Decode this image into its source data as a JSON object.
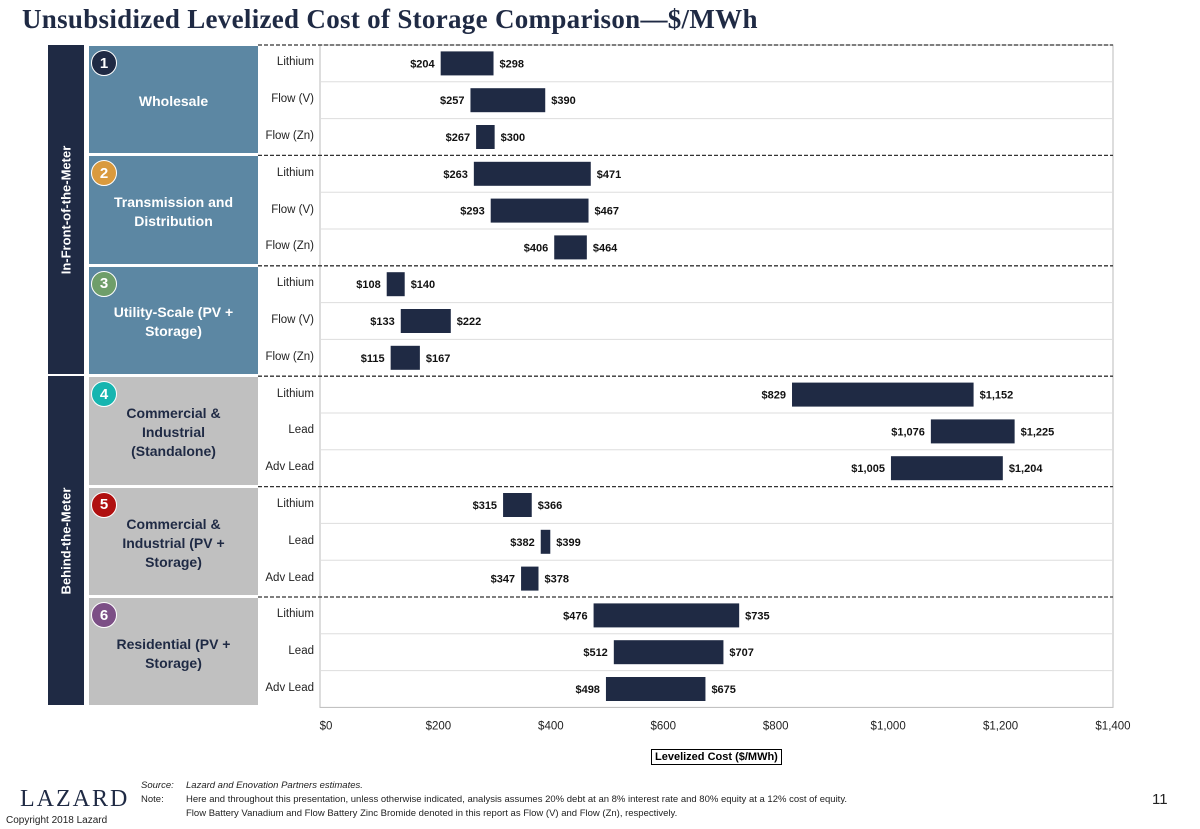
{
  "title": "Unsubsidized Levelized Cost of Storage Comparison—$/MWh",
  "segments": [
    {
      "label": "In-Front-of-the-Meter"
    },
    {
      "label": "Behind-the-Meter"
    }
  ],
  "groups": [
    {
      "num": "1",
      "label": "Wholesale",
      "color": "#1f2a44",
      "segment": 0
    },
    {
      "num": "2",
      "label": "Transmission and Distribution",
      "color": "#d99a3e",
      "segment": 0
    },
    {
      "num": "3",
      "label": "Utility-Scale (PV + Storage)",
      "color": "#6f9e6a",
      "segment": 0
    },
    {
      "num": "4",
      "label": "Commercial & Industrial (Standalone)",
      "color": "#16b5b0",
      "segment": 1
    },
    {
      "num": "5",
      "label": "Commercial & Industrial (PV + Storage)",
      "color": "#b01010",
      "segment": 1
    },
    {
      "num": "6",
      "label": "Residential (PV + Storage)",
      "color": "#7c4f86",
      "segment": 1
    }
  ],
  "chart_data": {
    "type": "bar",
    "orientation": "horizontal floating range",
    "xlabel": "Levelized Cost ($/MWh)",
    "xlim": [
      0,
      1400
    ],
    "xticks": [
      "$0",
      "$200",
      "$400",
      "$600",
      "$800",
      "$1,000",
      "$1,200",
      "$1,400"
    ],
    "bar_color": "#1f2a44",
    "rows": [
      {
        "group": 0,
        "tech": "Lithium",
        "low": 204,
        "high": 298,
        "low_label": "$204",
        "high_label": "$298"
      },
      {
        "group": 0,
        "tech": "Flow (V)",
        "low": 257,
        "high": 390,
        "low_label": "$257",
        "high_label": "$390"
      },
      {
        "group": 0,
        "tech": "Flow (Zn)",
        "low": 267,
        "high": 300,
        "low_label": "$267",
        "high_label": "$300"
      },
      {
        "group": 1,
        "tech": "Lithium",
        "low": 263,
        "high": 471,
        "low_label": "$263",
        "high_label": "$471"
      },
      {
        "group": 1,
        "tech": "Flow (V)",
        "low": 293,
        "high": 467,
        "low_label": "$293",
        "high_label": "$467"
      },
      {
        "group": 1,
        "tech": "Flow (Zn)",
        "low": 406,
        "high": 464,
        "low_label": "$406",
        "high_label": "$464"
      },
      {
        "group": 2,
        "tech": "Lithium",
        "low": 108,
        "high": 140,
        "low_label": "$108",
        "high_label": "$140"
      },
      {
        "group": 2,
        "tech": "Flow (V)",
        "low": 133,
        "high": 222,
        "low_label": "$133",
        "high_label": "$222"
      },
      {
        "group": 2,
        "tech": "Flow (Zn)",
        "low": 115,
        "high": 167,
        "low_label": "$115",
        "high_label": "$167"
      },
      {
        "group": 3,
        "tech": "Lithium",
        "low": 829,
        "high": 1152,
        "low_label": "$829",
        "high_label": "$1,152"
      },
      {
        "group": 3,
        "tech": "Lead",
        "low": 1076,
        "high": 1225,
        "low_label": "$1,076",
        "high_label": "$1,225"
      },
      {
        "group": 3,
        "tech": "Adv Lead",
        "low": 1005,
        "high": 1204,
        "low_label": "$1,005",
        "high_label": "$1,204"
      },
      {
        "group": 4,
        "tech": "Lithium",
        "low": 315,
        "high": 366,
        "low_label": "$315",
        "high_label": "$366"
      },
      {
        "group": 4,
        "tech": "Lead",
        "low": 382,
        "high": 399,
        "low_label": "$382",
        "high_label": "$399"
      },
      {
        "group": 4,
        "tech": "Adv Lead",
        "low": 347,
        "high": 378,
        "low_label": "$347",
        "high_label": "$378"
      },
      {
        "group": 5,
        "tech": "Lithium",
        "low": 476,
        "high": 735,
        "low_label": "$476",
        "high_label": "$735"
      },
      {
        "group": 5,
        "tech": "Lead",
        "low": 512,
        "high": 707,
        "low_label": "$512",
        "high_label": "$707"
      },
      {
        "group": 5,
        "tech": "Adv Lead",
        "low": 498,
        "high": 675,
        "low_label": "$498",
        "high_label": "$675"
      }
    ]
  },
  "footer": {
    "source_label": "Source:",
    "source": "Lazard and Enovation Partners estimates.",
    "note_label": "Note:",
    "note1": "Here and throughout this presentation, unless otherwise indicated, analysis assumes 20% debt at an 8% interest rate and 80% equity at a 12% cost of equity.",
    "note2": "Flow Battery Vanadium and Flow Battery Zinc Bromide denoted in this report as Flow (V) and Flow (Zn), respectively.",
    "logo": "LAZARD",
    "copyright": "Copyright 2018 Lazard",
    "page": "11"
  }
}
